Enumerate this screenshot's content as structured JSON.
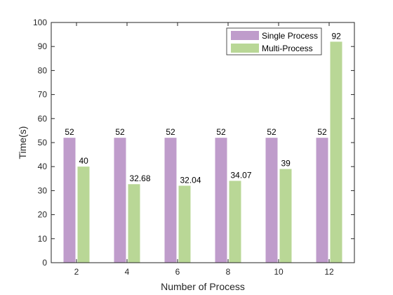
{
  "chart_data": {
    "type": "bar",
    "title": "",
    "xlabel": "Number of Process",
    "ylabel": "Time(s)",
    "ylim": [
      0,
      100
    ],
    "yticks": [
      0,
      10,
      20,
      30,
      40,
      50,
      60,
      70,
      80,
      90,
      100
    ],
    "categories": [
      "2",
      "4",
      "6",
      "8",
      "10",
      "12"
    ],
    "series": [
      {
        "name": "Single Process",
        "color": "#bf9ccb",
        "values": [
          52,
          52,
          52,
          52,
          52,
          52
        ],
        "labels": [
          "52",
          "52",
          "52",
          "52",
          "52",
          "52"
        ]
      },
      {
        "name": "Multi-Process",
        "color": "#b9d796",
        "values": [
          40,
          32.68,
          32.04,
          34.07,
          39,
          92
        ],
        "labels": [
          "40",
          "32.68",
          "32.04",
          "34.07",
          "39",
          "92"
        ]
      }
    ],
    "legend_position": "top-right",
    "grid": false
  }
}
